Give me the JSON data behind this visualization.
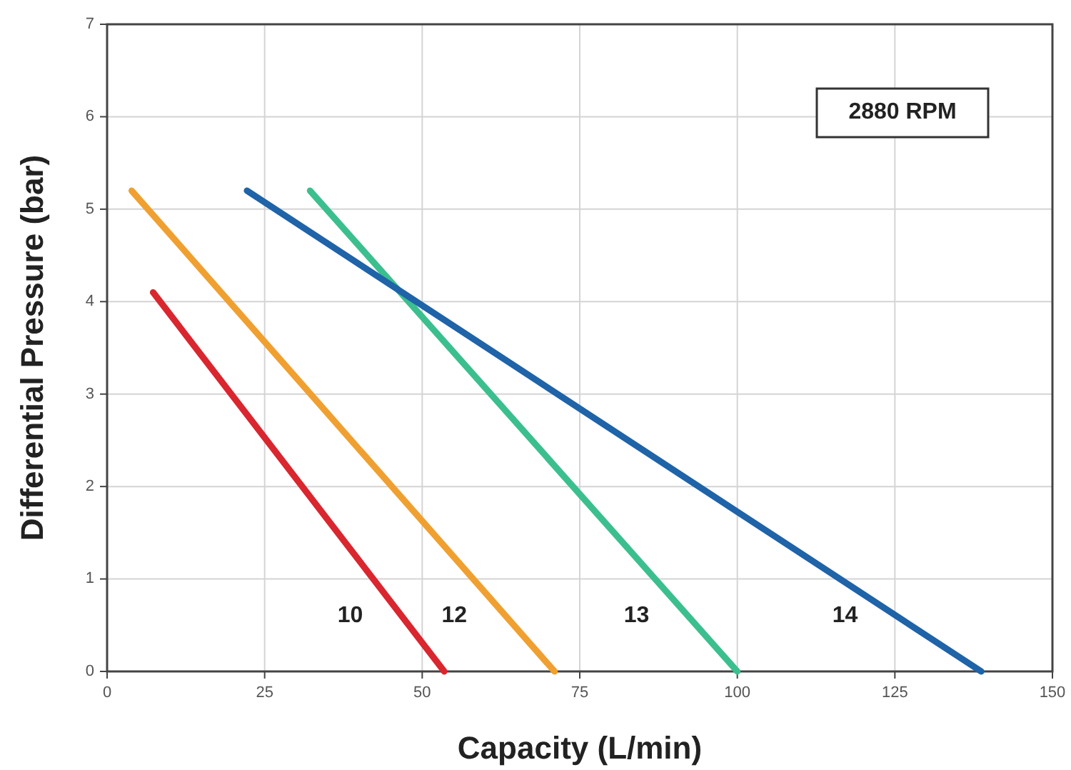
{
  "chart_data": {
    "type": "line",
    "xlabel": "Capacity (L/min)",
    "ylabel": "Differential Pressure (bar)",
    "xlim": [
      0,
      150
    ],
    "ylim": [
      0,
      7
    ],
    "xticks": [
      0,
      25,
      50,
      75,
      100,
      125,
      150
    ],
    "yticks": [
      0,
      1,
      2,
      3,
      4,
      5,
      6,
      7
    ],
    "grid": true,
    "marker": "none",
    "line_style": "solid",
    "annotations": [
      "2880 RPM"
    ],
    "series": [
      {
        "name": "10",
        "color": "#d9262f",
        "x": [
          7.3,
          53.5
        ],
        "values": [
          4.1,
          0
        ]
      },
      {
        "name": "12",
        "color": "#f0a030",
        "x": [
          3.9,
          71
        ],
        "values": [
          5.2,
          0
        ]
      },
      {
        "name": "13",
        "color": "#3cbf8f",
        "x": [
          32.2,
          100
        ],
        "values": [
          5.2,
          0
        ]
      },
      {
        "name": "14",
        "color": "#1f63a8",
        "x": [
          22.2,
          138.7
        ],
        "values": [
          5.2,
          0
        ]
      }
    ]
  }
}
